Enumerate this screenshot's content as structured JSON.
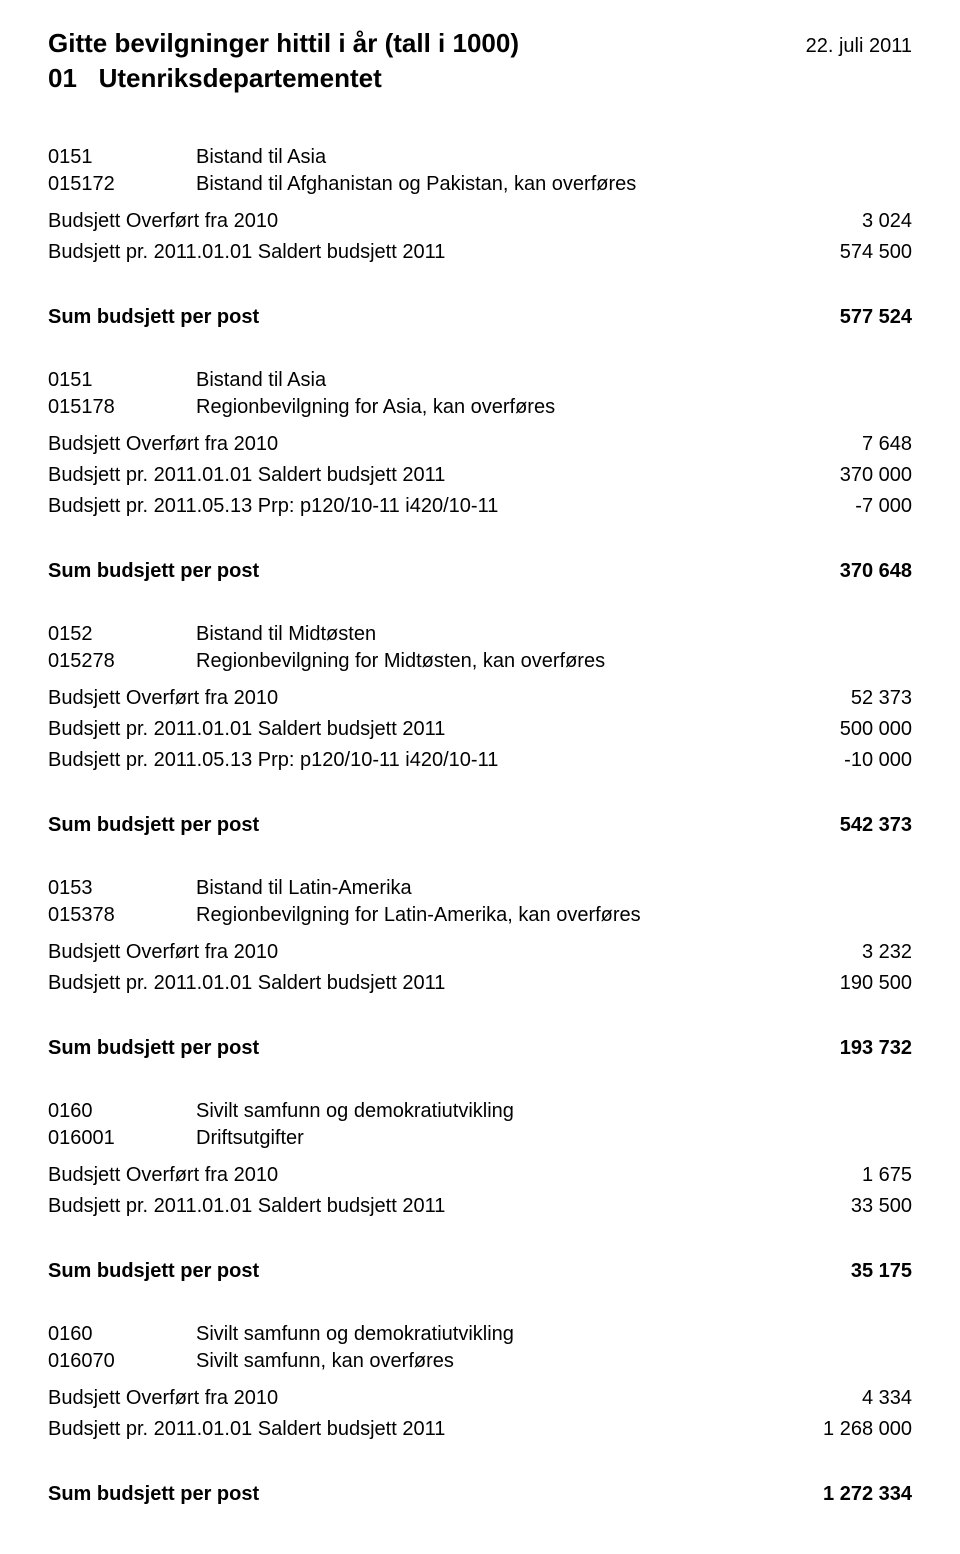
{
  "header": {
    "title": "Gitte bevilgninger hittil i år (tall i 1000)",
    "date": "22. juli 2011",
    "deptCode": "01",
    "deptName": "Utenriksdepartementet"
  },
  "sections": [
    {
      "intro": [
        {
          "code": "0151",
          "label": "Bistand til Asia"
        },
        {
          "code": "015172",
          "label": "Bistand til Afghanistan og Pakistan, kan overføres"
        }
      ],
      "lines": [
        {
          "label": "Budsjett Overført fra 2010",
          "value": "3 024"
        },
        {
          "label": "Budsjett pr. 2011.01.01 Saldert budsjett 2011",
          "value": "574 500"
        }
      ],
      "sumLabel": "Sum  budsjett  per post",
      "sumValue": "577 524"
    },
    {
      "intro": [
        {
          "code": "0151",
          "label": "Bistand til Asia"
        },
        {
          "code": "015178",
          "label": "Regionbevilgning for Asia, kan overføres"
        }
      ],
      "lines": [
        {
          "label": "Budsjett Overført fra 2010",
          "value": "7 648"
        },
        {
          "label": "Budsjett pr. 2011.01.01 Saldert budsjett 2011",
          "value": "370 000"
        },
        {
          "label": "Budsjett pr. 2011.05.13 Prp: p120/10-11 i420/10-11",
          "value": "-7 000"
        }
      ],
      "sumLabel": "Sum  budsjett  per post",
      "sumValue": "370 648"
    },
    {
      "intro": [
        {
          "code": "0152",
          "label": "Bistand til Midtøsten"
        },
        {
          "code": "015278",
          "label": "Regionbevilgning for Midtøsten, kan overføres"
        }
      ],
      "lines": [
        {
          "label": "Budsjett Overført fra 2010",
          "value": "52 373"
        },
        {
          "label": "Budsjett pr. 2011.01.01 Saldert budsjett 2011",
          "value": "500 000"
        },
        {
          "label": "Budsjett pr. 2011.05.13 Prp: p120/10-11 i420/10-11",
          "value": "-10 000"
        }
      ],
      "sumLabel": "Sum  budsjett  per post",
      "sumValue": "542 373"
    },
    {
      "intro": [
        {
          "code": "0153",
          "label": "Bistand til Latin-Amerika"
        },
        {
          "code": "015378",
          "label": "Regionbevilgning for Latin-Amerika, kan overføres"
        }
      ],
      "lines": [
        {
          "label": "Budsjett Overført fra 2010",
          "value": "3 232"
        },
        {
          "label": "Budsjett pr. 2011.01.01 Saldert budsjett 2011",
          "value": "190 500"
        }
      ],
      "sumLabel": "Sum  budsjett  per post",
      "sumValue": "193 732"
    },
    {
      "intro": [
        {
          "code": "0160",
          "label": "Sivilt samfunn og demokratiutvikling"
        },
        {
          "code": "016001",
          "label": "Driftsutgifter"
        }
      ],
      "lines": [
        {
          "label": "Budsjett Overført fra 2010",
          "value": "1 675"
        },
        {
          "label": "Budsjett pr. 2011.01.01 Saldert budsjett 2011",
          "value": "33 500"
        }
      ],
      "sumLabel": "Sum  budsjett  per post",
      "sumValue": "35 175"
    },
    {
      "intro": [
        {
          "code": "0160",
          "label": "Sivilt samfunn og demokratiutvikling"
        },
        {
          "code": "016070",
          "label": "Sivilt samfunn, kan overføres"
        }
      ],
      "lines": [
        {
          "label": "Budsjett Overført fra 2010",
          "value": "4 334"
        },
        {
          "label": "Budsjett pr. 2011.01.01 Saldert budsjett 2011",
          "value": "1 268 000"
        }
      ],
      "sumLabel": "Sum  budsjett  per post",
      "sumValue": "1 272 334"
    }
  ]
}
